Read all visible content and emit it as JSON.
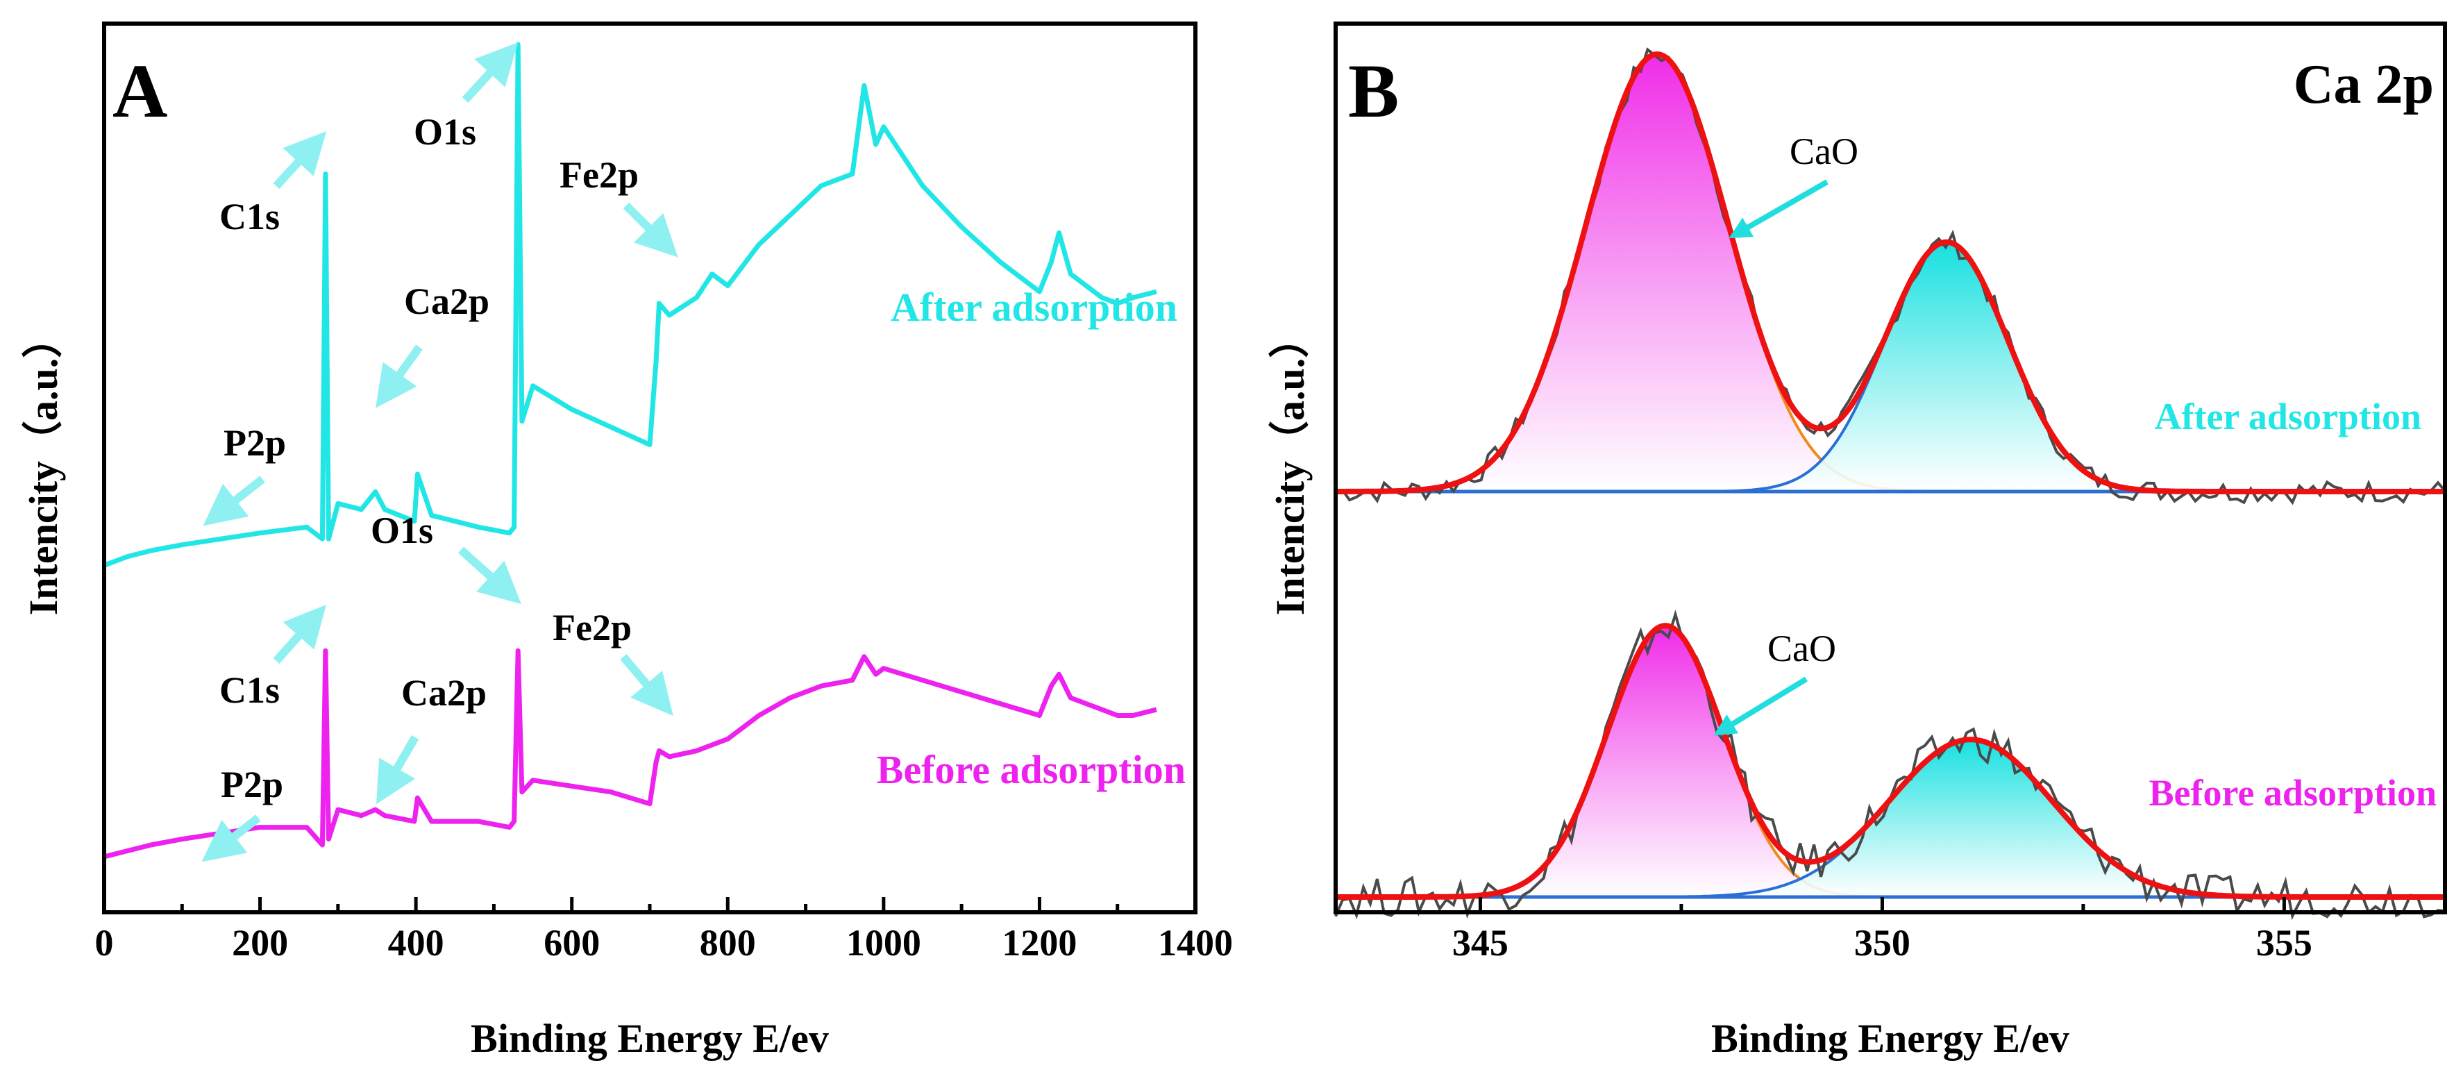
{
  "colors": {
    "after": "#22e6e6",
    "before": "#ee22ee",
    "fit": "#ee1111",
    "baseline": "#2a6fd6",
    "raw": "#4a4a4a",
    "component_pink": "#f02ce8",
    "component_cyan": "#16e0e0"
  },
  "chart_data": [
    {
      "type": "line",
      "panel_label": "A",
      "xlabel": "Binding Energy E/ev",
      "ylabel": "Intencity（a.u.）",
      "xlim": [
        0,
        1400
      ],
      "xticks": [
        "0",
        "200",
        "400",
        "600",
        "800",
        "1000",
        "1200",
        "1400"
      ],
      "legend_placement": "right",
      "series": [
        {
          "name": "After adsorption",
          "x": [
            0,
            30,
            60,
            100,
            150,
            200,
            260,
            280,
            284,
            288,
            300,
            330,
            348,
            360,
            398,
            402,
            420,
            480,
            520,
            526,
            531,
            536,
            550,
            600,
            650,
            700,
            708,
            712,
            725,
            760,
            780,
            800,
            840,
            880,
            920,
            960,
            975,
            990,
            1000,
            1050,
            1100,
            1150,
            1200,
            1215,
            1225,
            1240,
            1280,
            1300,
            1320,
            1350
          ],
          "y": [
            0.055,
            0.07,
            0.08,
            0.09,
            0.1,
            0.11,
            0.12,
            0.1,
            0.72,
            0.1,
            0.16,
            0.15,
            0.18,
            0.15,
            0.13,
            0.21,
            0.14,
            0.12,
            0.11,
            0.12,
            0.94,
            0.3,
            0.36,
            0.32,
            0.29,
            0.26,
            0.4,
            0.5,
            0.48,
            0.51,
            0.55,
            0.53,
            0.6,
            0.65,
            0.7,
            0.72,
            0.87,
            0.77,
            0.8,
            0.7,
            0.63,
            0.57,
            0.52,
            0.57,
            0.62,
            0.55,
            0.51,
            0.5,
            0.51,
            0.52
          ]
        },
        {
          "name": "Before adsorption",
          "x": [
            0,
            30,
            60,
            100,
            150,
            200,
            260,
            280,
            284,
            288,
            300,
            330,
            348,
            360,
            398,
            402,
            420,
            480,
            520,
            526,
            531,
            536,
            550,
            600,
            650,
            700,
            708,
            712,
            725,
            760,
            780,
            800,
            840,
            880,
            920,
            960,
            975,
            990,
            1000,
            1050,
            1100,
            1150,
            1200,
            1215,
            1225,
            1240,
            1280,
            1300,
            1320,
            1350
          ],
          "y": [
            -0.44,
            -0.43,
            -0.42,
            -0.41,
            -0.4,
            -0.39,
            -0.39,
            -0.42,
            -0.09,
            -0.41,
            -0.36,
            -0.37,
            -0.36,
            -0.37,
            -0.38,
            -0.34,
            -0.38,
            -0.38,
            -0.39,
            -0.38,
            -0.09,
            -0.33,
            -0.31,
            -0.32,
            -0.33,
            -0.35,
            -0.28,
            -0.26,
            -0.27,
            -0.26,
            -0.25,
            -0.24,
            -0.2,
            -0.17,
            -0.15,
            -0.14,
            -0.1,
            -0.13,
            -0.12,
            -0.14,
            -0.16,
            -0.18,
            -0.2,
            -0.15,
            -0.13,
            -0.17,
            -0.19,
            -0.2,
            -0.2,
            -0.19
          ]
        }
      ],
      "annotations": [
        {
          "text": "C1s",
          "x": 284,
          "series": "After adsorption"
        },
        {
          "text": "O1s",
          "x": 531,
          "series": "After adsorption"
        },
        {
          "text": "Fe2p",
          "x": 710,
          "series": "After adsorption"
        },
        {
          "text": "Ca2p",
          "x": 348,
          "series": "After adsorption"
        },
        {
          "text": "P2p",
          "x": 133,
          "series": "After adsorption"
        },
        {
          "text": "O1s",
          "x": 531,
          "series": "Before adsorption"
        },
        {
          "text": "C1s",
          "x": 284,
          "series": "Before adsorption"
        },
        {
          "text": "Fe2p",
          "x": 710,
          "series": "Before adsorption"
        },
        {
          "text": "Ca2p",
          "x": 348,
          "series": "Before adsorption"
        },
        {
          "text": "P2p",
          "x": 133,
          "series": "Before adsorption"
        }
      ]
    },
    {
      "type": "line",
      "panel_label": "B",
      "title": "Ca 2p",
      "xlabel": "Binding Energy E/ev",
      "ylabel": "Intencity（a.u.）",
      "xlim": [
        343.2,
        357
      ],
      "xticks": [
        "345",
        "350",
        "355"
      ],
      "groups": [
        {
          "name": "After adsorption",
          "label": "CaO",
          "peaks": [
            {
              "center": 347.2,
              "fwhm": 2.1,
              "height": 1.0
            },
            {
              "center": 350.8,
              "fwhm": 1.8,
              "height": 0.57
            }
          ]
        },
        {
          "name": "Before adsorption",
          "label": "CaO",
          "peaks": [
            {
              "center": 347.3,
              "fwhm": 1.7,
              "height": 0.62
            },
            {
              "center": 351.1,
              "fwhm": 2.4,
              "height": 0.36
            }
          ]
        }
      ]
    }
  ]
}
